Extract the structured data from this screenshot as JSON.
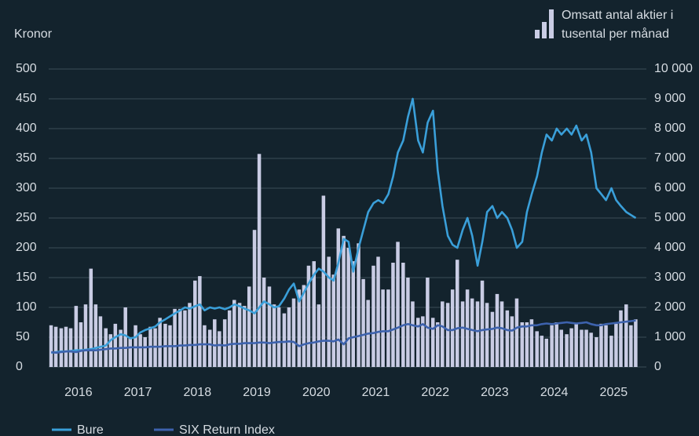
{
  "chart_data": {
    "type": "combo",
    "ylabel": "Kronor",
    "y2label": [
      "Omsatt antal aktier i",
      "tusental per månad"
    ],
    "x": [
      2016.0,
      2016.08,
      2016.17,
      2016.25,
      2016.33,
      2016.42,
      2016.5,
      2016.58,
      2016.67,
      2016.75,
      2016.83,
      2016.92,
      2017.0,
      2017.08,
      2017.17,
      2017.25,
      2017.33,
      2017.42,
      2017.5,
      2017.58,
      2017.67,
      2017.75,
      2017.83,
      2017.92,
      2018.0,
      2018.08,
      2018.17,
      2018.25,
      2018.33,
      2018.42,
      2018.5,
      2018.58,
      2018.67,
      2018.75,
      2018.83,
      2018.92,
      2019.0,
      2019.08,
      2019.17,
      2019.25,
      2019.33,
      2019.42,
      2019.5,
      2019.58,
      2019.67,
      2019.75,
      2019.83,
      2019.92,
      2020.0,
      2020.08,
      2020.17,
      2020.25,
      2020.33,
      2020.42,
      2020.5,
      2020.58,
      2020.67,
      2020.75,
      2020.83,
      2020.92,
      2021.0,
      2021.08,
      2021.17,
      2021.25,
      2021.33,
      2021.42,
      2021.5,
      2021.58,
      2021.67,
      2021.75,
      2021.83,
      2021.92,
      2022.0,
      2022.08,
      2022.17,
      2022.25,
      2022.33,
      2022.42,
      2022.5,
      2022.58,
      2022.67,
      2022.75,
      2022.83,
      2022.92,
      2023.0,
      2023.08,
      2023.17,
      2023.25,
      2023.33,
      2023.42,
      2023.5,
      2023.58,
      2023.67,
      2023.75,
      2023.83,
      2023.92,
      2024.0,
      2024.08,
      2024.17,
      2024.25,
      2024.33,
      2024.42,
      2024.5,
      2024.58,
      2024.67,
      2024.75,
      2024.83,
      2024.92,
      2025.0,
      2025.08,
      2025.17,
      2025.25,
      2025.33,
      2025.42,
      2025.5,
      2025.58,
      2025.67,
      2025.75,
      2025.83
    ],
    "series": [
      {
        "type": "bar",
        "axis": "y2",
        "color": "#c9cce4",
        "values": [
          1400,
          1350,
          1300,
          1350,
          1300,
          2050,
          1500,
          2100,
          3300,
          2100,
          1700,
          1300,
          1100,
          1450,
          1250,
          2000,
          1000,
          1400,
          1100,
          1000,
          1350,
          1300,
          1650,
          1450,
          1400,
          1950,
          1950,
          1900,
          2150,
          2900,
          3050,
          1400,
          1250,
          1600,
          1200,
          1600,
          1900,
          2250,
          2150,
          2050,
          2700,
          4600,
          7150,
          3000,
          2700,
          2100,
          2000,
          1800,
          2000,
          2300,
          2600,
          2750,
          3400,
          3550,
          2100,
          5750,
          3700,
          3100,
          4650,
          4400,
          4000,
          3550,
          4150,
          2950,
          2250,
          3400,
          3700,
          2600,
          2600,
          3500,
          4200,
          3500,
          3000,
          2200,
          1650,
          1700,
          3000,
          1650,
          1500,
          2200,
          2150,
          2600,
          3600,
          2200,
          2600,
          2300,
          2200,
          2900,
          2150,
          1850,
          2450,
          2200,
          1900,
          1700,
          2300,
          1500,
          1500,
          1600,
          1200,
          1050,
          950,
          1400,
          1500,
          1250,
          1100,
          1300,
          1450,
          1250,
          1250,
          1150,
          1000,
          1450,
          1400,
          1050,
          1450,
          1900,
          2100,
          1400,
          1600
        ]
      },
      {
        "type": "line",
        "name": "Bure",
        "color": "#3a9fd9",
        "values": [
          24,
          25,
          26,
          26,
          27,
          28,
          28,
          29,
          30,
          32,
          34,
          36,
          45,
          50,
          55,
          53,
          48,
          50,
          58,
          62,
          65,
          68,
          75,
          80,
          85,
          90,
          95,
          100,
          98,
          102,
          105,
          95,
          100,
          98,
          100,
          97,
          100,
          105,
          102,
          98,
          95,
          90,
          100,
          110,
          105,
          100,
          102,
          115,
          130,
          140,
          110,
          125,
          140,
          155,
          165,
          160,
          150,
          145,
          175,
          215,
          210,
          160,
          200,
          230,
          260,
          275,
          280,
          275,
          290,
          320,
          360,
          380,
          420,
          450,
          380,
          360,
          410,
          430,
          330,
          270,
          220,
          205,
          200,
          230,
          250,
          220,
          170,
          210,
          260,
          270,
          250,
          260,
          250,
          230,
          200,
          210,
          260,
          290,
          320,
          360,
          390,
          380,
          400,
          390,
          400,
          390,
          405,
          380,
          390,
          360,
          300,
          290,
          280,
          300,
          280,
          270,
          260,
          255,
          250
        ]
      },
      {
        "type": "line",
        "name": "SIX Return Index",
        "color": "#3d62ad",
        "values": [
          25,
          24,
          25,
          26,
          26,
          25,
          27,
          28,
          28,
          28,
          29,
          30,
          31,
          31,
          32,
          32,
          33,
          33,
          33,
          33,
          34,
          34,
          34,
          35,
          35,
          35,
          36,
          36,
          37,
          37,
          38,
          38,
          38,
          36,
          37,
          36,
          38,
          39,
          39,
          40,
          40,
          40,
          41,
          41,
          40,
          41,
          42,
          42,
          43,
          42,
          35,
          38,
          40,
          41,
          43,
          44,
          44,
          43,
          46,
          38,
          48,
          50,
          52,
          54,
          56,
          57,
          59,
          60,
          60,
          63,
          66,
          70,
          72,
          70,
          68,
          72,
          66,
          64,
          70,
          68,
          62,
          62,
          65,
          66,
          64,
          62,
          60,
          62,
          63,
          64,
          66,
          65,
          62,
          61,
          66,
          68,
          68,
          70,
          70,
          72,
          73,
          72,
          73,
          74,
          75,
          74,
          73,
          74,
          75,
          72,
          70,
          70,
          72,
          73,
          74,
          75,
          76,
          77,
          78
        ]
      }
    ],
    "xlim": [
      2016,
      2026.05
    ],
    "xticks": [
      2016,
      2017,
      2018,
      2019,
      2020,
      2021,
      2022,
      2023,
      2024,
      2025
    ],
    "ylim": [
      0,
      500
    ],
    "yticks": [
      0,
      50,
      100,
      150,
      200,
      250,
      300,
      350,
      400,
      450,
      500
    ],
    "y2lim": [
      0,
      10000
    ],
    "y2ticks": [
      0,
      {
        "value": 1000,
        "label": "1 000"
      },
      {
        "value": 2000,
        "label": "2 000"
      },
      {
        "value": 3000,
        "label": "3 000"
      },
      {
        "value": 4000,
        "label": "4 000"
      },
      {
        "value": 5000,
        "label": "5 000"
      },
      {
        "value": 6000,
        "label": "6 000"
      },
      {
        "value": 7000,
        "label": "7 000"
      },
      {
        "value": 8000,
        "label": "8 000"
      },
      {
        "value": 9000,
        "label": "9 000"
      },
      {
        "value": 10000,
        "label": "10 000"
      }
    ],
    "grid": true
  }
}
